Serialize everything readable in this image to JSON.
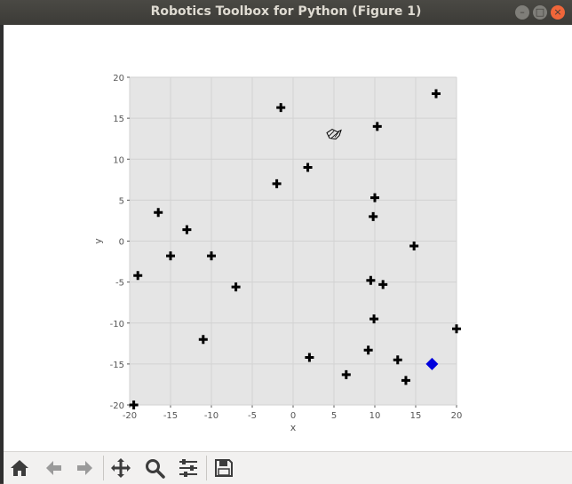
{
  "window": {
    "title": "Robotics Toolbox for Python (Figure 1)",
    "buttons": [
      "–",
      "□",
      "×"
    ]
  },
  "toolbar": {
    "items": [
      "home-icon",
      "back-arrow-icon",
      "forward-arrow-icon",
      "pan-move-icon",
      "zoom-magnifier-icon",
      "configure-subplots-icon",
      "save-disk-icon"
    ]
  },
  "chart_data": {
    "type": "scatter",
    "xlabel": "x",
    "ylabel": "y",
    "xlim": [
      -20,
      20
    ],
    "ylim": [
      -20,
      20
    ],
    "xticks": [
      -20,
      -15,
      -10,
      -5,
      0,
      5,
      10,
      15,
      20
    ],
    "yticks": [
      20,
      15,
      10,
      5,
      0,
      -5,
      -10,
      -15,
      -20
    ],
    "grid": true,
    "background": "#e5e5e5",
    "series": [
      {
        "marker": "plus",
        "color": "#000000",
        "points": [
          [
            17.5,
            18
          ],
          [
            -1.5,
            16.3
          ],
          [
            10.3,
            14
          ],
          [
            1.8,
            9
          ],
          [
            -2,
            7
          ],
          [
            10,
            5.3
          ],
          [
            -16.5,
            3.5
          ],
          [
            9.8,
            3
          ],
          [
            -13,
            1.4
          ],
          [
            -15,
            -1.8
          ],
          [
            -10,
            -1.8
          ],
          [
            14.8,
            -0.6
          ],
          [
            -19,
            -4.2
          ],
          [
            9.5,
            -4.8
          ],
          [
            11,
            -5.3
          ],
          [
            -7,
            -5.6
          ],
          [
            9.9,
            -9.5
          ],
          [
            -11,
            -12
          ],
          [
            20,
            -10.7
          ],
          [
            9.2,
            -13.3
          ],
          [
            2,
            -14.2
          ],
          [
            12.8,
            -14.5
          ],
          [
            6.5,
            -16.3
          ],
          [
            13.8,
            -17
          ],
          [
            -19.5,
            -20
          ]
        ]
      },
      {
        "marker": "diamond",
        "color": "#0000dd",
        "points": [
          [
            17,
            -15
          ]
        ]
      },
      {
        "marker": "robot",
        "color": "#000000",
        "points": [
          [
            5,
            13
          ]
        ]
      }
    ]
  }
}
